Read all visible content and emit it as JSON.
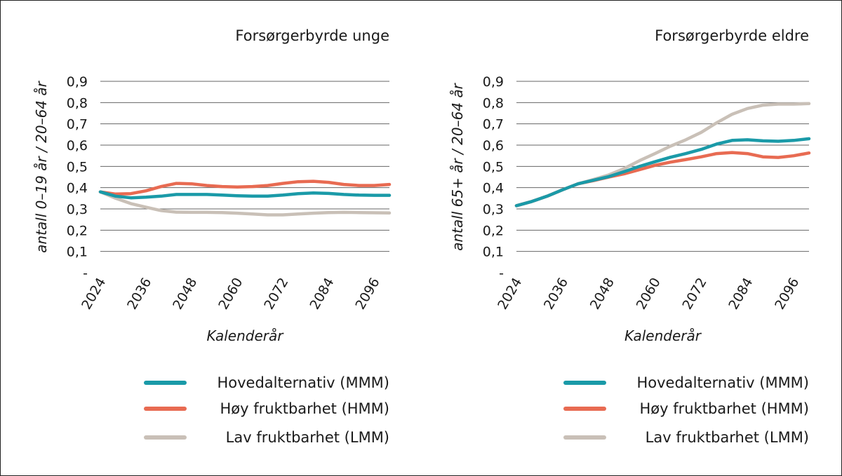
{
  "chart_data": [
    {
      "type": "line",
      "title": "Forsørgerbyrde unge",
      "xlabel": "Kalenderår",
      "ylabel": "antall 0–19 år / 20–64 år",
      "ylim": [
        0,
        0.9
      ],
      "xlim": [
        2024,
        2100
      ],
      "x_ticks": [
        "2024",
        "2036",
        "2048",
        "2060",
        "2072",
        "2084",
        "2096"
      ],
      "y_ticks": [
        "-",
        "0,1",
        "0,2",
        "0,3",
        "0,4",
        "0,5",
        "0,6",
        "0,7",
        "0,8",
        "0,9"
      ],
      "grid": "horizontal",
      "legend": "bottom",
      "x": [
        2024,
        2028,
        2032,
        2036,
        2040,
        2044,
        2048,
        2052,
        2056,
        2060,
        2064,
        2068,
        2072,
        2076,
        2080,
        2084,
        2088,
        2092,
        2096,
        2100
      ],
      "series": [
        {
          "name": "Hovedalternativ (MMM)",
          "color": "#1a9aa8",
          "values": [
            0.38,
            0.36,
            0.352,
            0.355,
            0.36,
            0.368,
            0.368,
            0.368,
            0.365,
            0.362,
            0.36,
            0.36,
            0.365,
            0.372,
            0.375,
            0.373,
            0.368,
            0.365,
            0.364,
            0.364
          ]
        },
        {
          "name": "Høy fruktbarhet (HMM)",
          "color": "#e86b52",
          "values": [
            0.38,
            0.37,
            0.372,
            0.385,
            0.405,
            0.42,
            0.418,
            0.41,
            0.405,
            0.403,
            0.405,
            0.41,
            0.42,
            0.428,
            0.43,
            0.425,
            0.415,
            0.41,
            0.41,
            0.415
          ]
        },
        {
          "name": "Lav fruktbarhet (LMM)",
          "color": "#c9c0b7",
          "values": [
            0.38,
            0.35,
            0.325,
            0.308,
            0.292,
            0.285,
            0.284,
            0.284,
            0.283,
            0.28,
            0.276,
            0.272,
            0.272,
            0.276,
            0.28,
            0.283,
            0.284,
            0.283,
            0.282,
            0.281
          ]
        }
      ]
    },
    {
      "type": "line",
      "title": "Forsørgerbyrde eldre",
      "xlabel": "Kalenderår",
      "ylabel": "antall 65+ år / 20–64 år",
      "ylim": [
        0,
        0.9
      ],
      "xlim": [
        2024,
        2100
      ],
      "x_ticks": [
        "2024",
        "2036",
        "2048",
        "2060",
        "2072",
        "2084",
        "2096"
      ],
      "y_ticks": [
        "-",
        "0,1",
        "0,2",
        "0,3",
        "0,4",
        "0,5",
        "0,6",
        "0,7",
        "0,8",
        "0,9"
      ],
      "grid": "horizontal",
      "legend": "bottom",
      "x": [
        2024,
        2028,
        2032,
        2036,
        2040,
        2044,
        2048,
        2052,
        2056,
        2060,
        2064,
        2068,
        2072,
        2076,
        2080,
        2084,
        2088,
        2092,
        2096,
        2100
      ],
      "series": [
        {
          "name": "Hovedalternativ (MMM)",
          "color": "#1a9aa8",
          "values": [
            0.315,
            0.335,
            0.36,
            0.39,
            0.418,
            0.435,
            0.452,
            0.475,
            0.5,
            0.522,
            0.543,
            0.56,
            0.58,
            0.605,
            0.622,
            0.625,
            0.62,
            0.618,
            0.622,
            0.63
          ]
        },
        {
          "name": "Høy fruktbarhet (HMM)",
          "color": "#e86b52",
          "values": [
            0.315,
            0.335,
            0.36,
            0.39,
            0.418,
            0.433,
            0.45,
            0.465,
            0.485,
            0.505,
            0.52,
            0.532,
            0.545,
            0.56,
            0.565,
            0.56,
            0.545,
            0.542,
            0.55,
            0.563
          ]
        },
        {
          "name": "Lav fruktbarhet (LMM)",
          "color": "#c9c0b7",
          "values": [
            0.315,
            0.335,
            0.36,
            0.39,
            0.418,
            0.438,
            0.46,
            0.49,
            0.527,
            0.56,
            0.595,
            0.625,
            0.66,
            0.705,
            0.745,
            0.772,
            0.788,
            0.793,
            0.793,
            0.795
          ]
        }
      ]
    }
  ]
}
